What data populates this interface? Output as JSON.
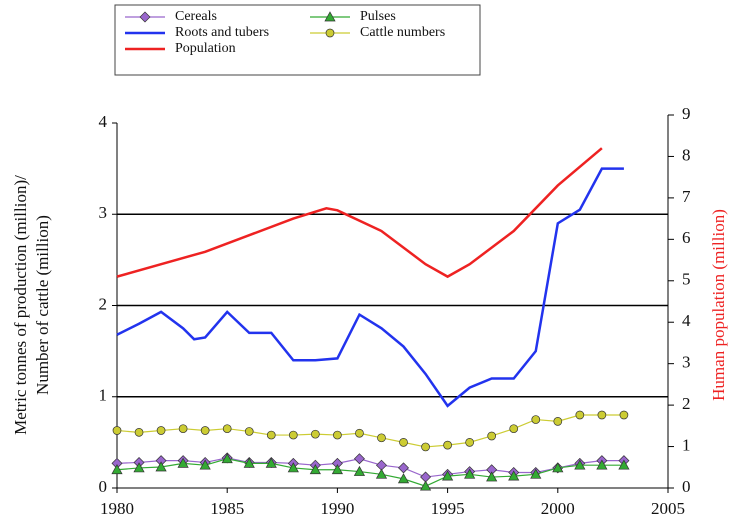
{
  "chart_data": {
    "type": "line",
    "ylabel": "Metric tonnes of production (million)/",
    "ylabel2": "Number of cattle (million)",
    "y2label": "Human population (million)",
    "xlim": [
      1980,
      2005
    ],
    "xticks": [
      1980,
      1985,
      1990,
      1995,
      2000,
      2005
    ],
    "ylim": [
      0,
      4
    ],
    "yticks": [
      0,
      1,
      2,
      3,
      4
    ],
    "y2lim": [
      0,
      9
    ],
    "y2ticks": [
      0,
      1,
      2,
      3,
      4,
      5,
      6,
      7,
      8,
      9
    ],
    "grid": true,
    "series": [
      {
        "name": "Cereals",
        "color": "#9966cc",
        "marker": "diamond",
        "x": [
          1980,
          1981,
          1982,
          1983,
          1984,
          1985,
          1986,
          1987,
          1988,
          1989,
          1990,
          1991,
          1992,
          1993,
          1994,
          1995,
          1996,
          1997,
          1998,
          1999,
          2000,
          2001,
          2002,
          2003
        ],
        "values": [
          0.27,
          0.28,
          0.3,
          0.3,
          0.28,
          0.33,
          0.28,
          0.28,
          0.27,
          0.25,
          0.27,
          0.32,
          0.25,
          0.22,
          0.12,
          0.15,
          0.18,
          0.2,
          0.17,
          0.17,
          0.22,
          0.27,
          0.3,
          0.3
        ]
      },
      {
        "name": "Pulses",
        "color": "#33aa33",
        "marker": "triangle",
        "x": [
          1980,
          1981,
          1982,
          1983,
          1984,
          1985,
          1986,
          1987,
          1988,
          1989,
          1990,
          1991,
          1992,
          1993,
          1994,
          1995,
          1996,
          1997,
          1998,
          1999,
          2000,
          2001,
          2002,
          2003
        ],
        "values": [
          0.2,
          0.22,
          0.23,
          0.27,
          0.25,
          0.32,
          0.27,
          0.27,
          0.22,
          0.2,
          0.2,
          0.18,
          0.15,
          0.1,
          0.02,
          0.13,
          0.15,
          0.12,
          0.13,
          0.15,
          0.22,
          0.25,
          0.25,
          0.25
        ]
      },
      {
        "name": "Roots and tubers",
        "color": "#2233ee",
        "marker": "none",
        "x": [
          1980,
          1981,
          1982,
          1983,
          1983.5,
          1984,
          1985,
          1986,
          1987,
          1988,
          1989,
          1990,
          1991,
          1992,
          1993,
          1994,
          1995,
          1996,
          1997,
          1998,
          1999,
          2000,
          2001,
          2002,
          2003
        ],
        "values": [
          1.68,
          1.8,
          1.93,
          1.75,
          1.63,
          1.65,
          1.93,
          1.7,
          1.7,
          1.4,
          1.4,
          1.42,
          1.9,
          1.75,
          1.55,
          1.25,
          0.9,
          1.1,
          1.2,
          1.2,
          1.5,
          2.9,
          3.05,
          3.5,
          3.5
        ]
      },
      {
        "name": "Cattle numbers",
        "color": "#cccc33",
        "marker": "circle",
        "x": [
          1980,
          1981,
          1982,
          1983,
          1984,
          1985,
          1986,
          1987,
          1988,
          1989,
          1990,
          1991,
          1992,
          1993,
          1994,
          1995,
          1996,
          1997,
          1998,
          1999,
          2000,
          2001,
          2002,
          2003
        ],
        "values": [
          0.63,
          0.61,
          0.63,
          0.65,
          0.63,
          0.65,
          0.62,
          0.58,
          0.58,
          0.59,
          0.58,
          0.6,
          0.55,
          0.5,
          0.45,
          0.47,
          0.5,
          0.57,
          0.65,
          0.75,
          0.73,
          0.8,
          0.8,
          0.8
        ]
      },
      {
        "name": "Population",
        "color": "#ee2222",
        "marker": "none",
        "axis": "y2",
        "x": [
          1980,
          1982,
          1984,
          1986,
          1988,
          1989.5,
          1990,
          1992,
          1994,
          1995,
          1996,
          1998,
          2000,
          2002
        ],
        "values": [
          5.1,
          5.4,
          5.7,
          6.1,
          6.5,
          6.75,
          6.7,
          6.2,
          5.4,
          5.1,
          5.4,
          6.2,
          7.3,
          8.2
        ]
      }
    ]
  }
}
